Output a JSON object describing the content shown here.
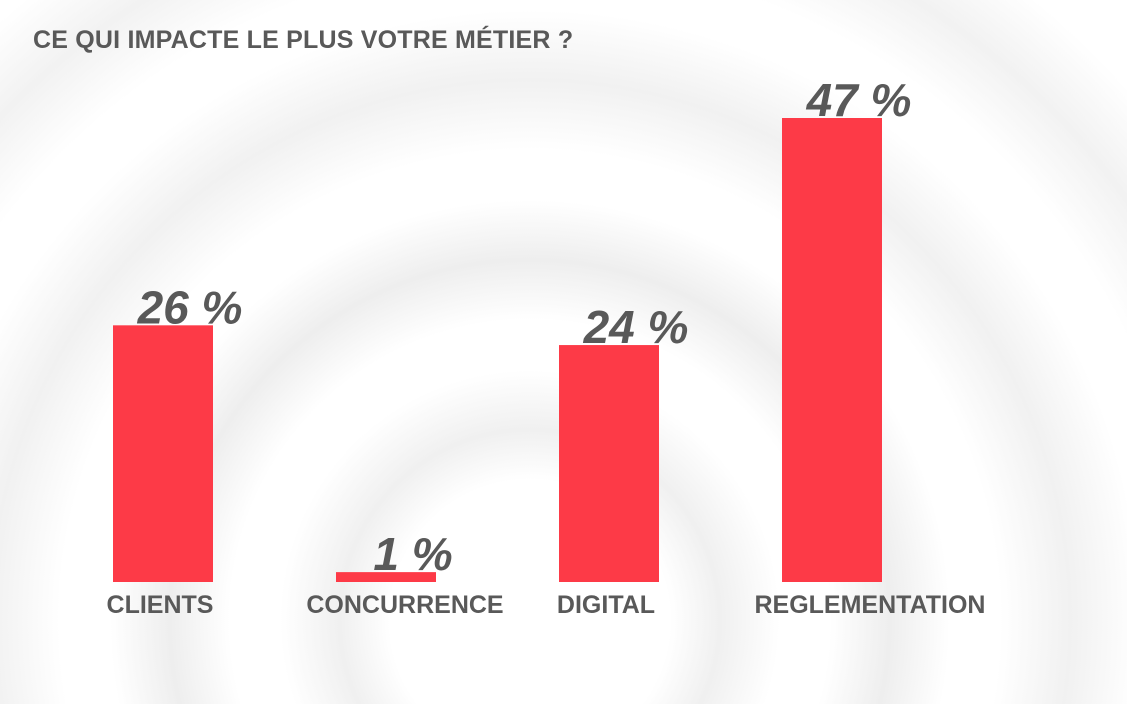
{
  "colors": {
    "bar": "#fd3a47",
    "text": "#595959"
  },
  "chart_data": {
    "type": "bar",
    "title": "CE QUI IMPACTE LE PLUS VOTRE MÉTIER ?",
    "xlabel": "",
    "ylabel": "",
    "unit": "%",
    "categories": [
      "CLIENTS",
      "CONCURRENCE",
      "DIGITAL",
      "REGLEMENTATION"
    ],
    "values": [
      26,
      1,
      24,
      47
    ],
    "value_labels": [
      "26 %",
      "1 %",
      "24 %",
      "47 %"
    ],
    "ylim": [
      0,
      47
    ],
    "grid": false,
    "legend": "none"
  }
}
